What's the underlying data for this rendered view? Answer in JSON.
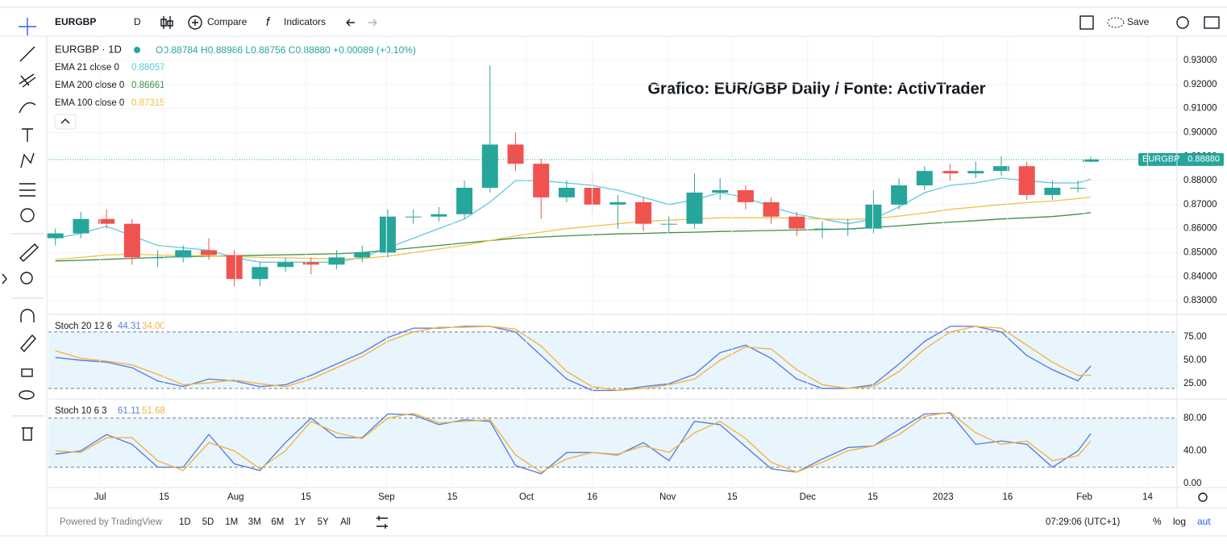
{
  "toolbar": {
    "symbol": "EURGBP",
    "interval": "D",
    "compare": "Compare",
    "indicators": "Indicators",
    "save": "Save"
  },
  "legend": {
    "symbol": "EURGBP · 1D",
    "ohlc": "O0.88784 H0.88986 L0.88756 C0.88880 +0.00089 (+0.10%)"
  },
  "annotation": "Grafico: EUR/GBP Daily / Fonte: ActivTrader",
  "bottom": {
    "powered": "Powered by TradingView",
    "ranges": [
      "1D",
      "5D",
      "1M",
      "3M",
      "6M",
      "1Y",
      "5Y",
      "All"
    ],
    "time": "07:29:06 (UTC+1)",
    "pct": "%",
    "log": "log",
    "auto": "aut"
  },
  "chart_data": [
    {
      "type": "candlestick",
      "up_color": "#26a69a",
      "down_color": "#ef5350",
      "x": [
        -7,
        -3,
        1,
        5,
        9,
        13,
        17,
        21,
        25,
        29,
        33,
        37,
        41,
        45,
        49,
        53,
        57,
        61,
        65,
        69,
        73,
        77,
        81,
        85,
        89,
        93,
        97,
        101,
        105,
        109,
        113,
        117,
        121,
        125,
        129,
        133,
        137,
        141,
        145,
        149,
        153,
        155
      ],
      "open": [
        0.856,
        0.858,
        0.864,
        0.862,
        0.848,
        0.848,
        0.851,
        0.849,
        0.839,
        0.844,
        0.846,
        0.845,
        0.848,
        0.85,
        0.865,
        0.865,
        0.866,
        0.877,
        0.895,
        0.887,
        0.873,
        0.877,
        0.87,
        0.871,
        0.862,
        0.862,
        0.875,
        0.876,
        0.871,
        0.865,
        0.86,
        0.86,
        0.86,
        0.87,
        0.878,
        0.884,
        0.883,
        0.884,
        0.886,
        0.874,
        0.877,
        0.88784
      ],
      "high": [
        0.86,
        0.867,
        0.868,
        0.864,
        0.851,
        0.853,
        0.856,
        0.851,
        0.846,
        0.848,
        0.848,
        0.851,
        0.853,
        0.868,
        0.868,
        0.869,
        0.88,
        0.928,
        0.9,
        0.889,
        0.88,
        0.883,
        0.874,
        0.873,
        0.865,
        0.883,
        0.881,
        0.878,
        0.873,
        0.867,
        0.863,
        0.864,
        0.876,
        0.881,
        0.886,
        0.887,
        0.888,
        0.89,
        0.888,
        0.88,
        0.88,
        0.88986
      ],
      "low": [
        0.853,
        0.856,
        0.86,
        0.845,
        0.844,
        0.846,
        0.847,
        0.836,
        0.836,
        0.842,
        0.841,
        0.843,
        0.846,
        0.848,
        0.862,
        0.863,
        0.864,
        0.875,
        0.884,
        0.864,
        0.871,
        0.866,
        0.86,
        0.859,
        0.858,
        0.86,
        0.872,
        0.868,
        0.862,
        0.857,
        0.856,
        0.857,
        0.858,
        0.868,
        0.876,
        0.88,
        0.881,
        0.882,
        0.872,
        0.872,
        0.875,
        0.88756
      ],
      "close": [
        0.858,
        0.864,
        0.862,
        0.848,
        0.848,
        0.851,
        0.849,
        0.839,
        0.844,
        0.846,
        0.845,
        0.848,
        0.85,
        0.865,
        0.865,
        0.866,
        0.877,
        0.895,
        0.887,
        0.873,
        0.877,
        0.87,
        0.871,
        0.862,
        0.862,
        0.875,
        0.876,
        0.871,
        0.865,
        0.86,
        0.86,
        0.86,
        0.87,
        0.878,
        0.884,
        0.883,
        0.884,
        0.886,
        0.874,
        0.877,
        0.877,
        0.8888
      ],
      "series": [
        {
          "name": "EMA 21 close 0",
          "legend_value": "0.88057",
          "color": "#5dc8e0",
          "values": [
            0.856,
            0.858,
            0.861,
            0.857,
            0.853,
            0.852,
            0.851,
            0.848,
            0.846,
            0.846,
            0.846,
            0.846,
            0.848,
            0.852,
            0.856,
            0.86,
            0.864,
            0.871,
            0.88,
            0.88,
            0.879,
            0.878,
            0.876,
            0.873,
            0.87,
            0.872,
            0.875,
            0.873,
            0.869,
            0.866,
            0.864,
            0.862,
            0.864,
            0.869,
            0.875,
            0.878,
            0.879,
            0.881,
            0.88,
            0.879,
            0.879,
            0.88057
          ]
        },
        {
          "name": "EMA 200 close 0",
          "legend_value": "0.86661",
          "color": "#3f8f47",
          "values": [
            0.8465,
            0.8468,
            0.8472,
            0.8476,
            0.848,
            0.8483,
            0.8485,
            0.8487,
            0.8489,
            0.8491,
            0.8493,
            0.8495,
            0.85,
            0.851,
            0.852,
            0.853,
            0.854,
            0.855,
            0.856,
            0.8565,
            0.857,
            0.8574,
            0.8578,
            0.858,
            0.8583,
            0.8585,
            0.8588,
            0.859,
            0.8592,
            0.8594,
            0.8596,
            0.8598,
            0.8605,
            0.8612,
            0.862,
            0.8627,
            0.8633,
            0.864,
            0.8645,
            0.865,
            0.866,
            0.86661
          ]
        },
        {
          "name": "EMA 100 close 0",
          "legend_value": "0.87315",
          "color": "#f2c145",
          "values": [
            0.847,
            0.848,
            0.849,
            0.8493,
            0.849,
            0.8488,
            0.8487,
            0.8483,
            0.848,
            0.8478,
            0.8476,
            0.8474,
            0.8475,
            0.8485,
            0.85,
            0.8515,
            0.853,
            0.855,
            0.857,
            0.8585,
            0.86,
            0.861,
            0.862,
            0.863,
            0.8635,
            0.864,
            0.8645,
            0.8645,
            0.8645,
            0.8643,
            0.864,
            0.8638,
            0.8642,
            0.8652,
            0.8665,
            0.868,
            0.869,
            0.87,
            0.8708,
            0.8715,
            0.8725,
            0.87315
          ]
        }
      ],
      "price_line": {
        "name": "EURGBP",
        "value": 0.8888,
        "label": "0.88880"
      },
      "xlim": [
        -8.1,
        168.5
      ],
      "ylim": [
        0.8243,
        0.9401
      ],
      "yticks": [
        {
          "value": 0.83,
          "label": "0.83000"
        },
        {
          "value": 0.84,
          "label": "0.84000"
        },
        {
          "value": 0.85,
          "label": "0.85000"
        },
        {
          "value": 0.86,
          "label": "0.86000"
        },
        {
          "value": 0.87,
          "label": "0.87000"
        },
        {
          "value": 0.88,
          "label": "0.88000"
        },
        {
          "value": 0.89,
          "label": "0.89000"
        },
        {
          "value": 0.9,
          "label": "0.90000"
        },
        {
          "value": 0.91,
          "label": "0.91000"
        },
        {
          "value": 0.92,
          "label": "0.92000"
        },
        {
          "value": 0.93,
          "label": "0.93000"
        }
      ]
    },
    {
      "type": "line",
      "title": "Stoch 20 12 6",
      "band": [
        20,
        80
      ],
      "x": [
        -7,
        -3,
        1,
        5,
        9,
        13,
        17,
        21,
        25,
        29,
        33,
        37,
        41,
        45,
        49,
        53,
        57,
        61,
        65,
        69,
        73,
        77,
        81,
        85,
        89,
        93,
        97,
        101,
        105,
        109,
        113,
        117,
        121,
        125,
        129,
        133,
        137,
        141,
        145,
        149,
        153,
        155
      ],
      "series": [
        {
          "legend_value": "44.31",
          "color": "#5b7fe0",
          "values": [
            53,
            50,
            48,
            42,
            28,
            22,
            30,
            28,
            22,
            24,
            34,
            46,
            58,
            74,
            84,
            84,
            86,
            86,
            80,
            55,
            30,
            18,
            18,
            22,
            25,
            35,
            58,
            66,
            52,
            30,
            20,
            20,
            24,
            46,
            70,
            86,
            86,
            80,
            55,
            40,
            28,
            44
          ]
        },
        {
          "legend_value": "34.00",
          "color": "#f2b53f",
          "values": [
            60,
            52,
            49,
            45,
            35,
            24,
            26,
            29,
            25,
            22,
            30,
            42,
            54,
            70,
            80,
            85,
            85,
            86,
            83,
            65,
            38,
            22,
            18,
            20,
            24,
            30,
            50,
            64,
            62,
            40,
            24,
            20,
            22,
            38,
            62,
            80,
            86,
            84,
            66,
            48,
            34,
            34
          ]
        }
      ],
      "xlim": [
        -8.1,
        168.5
      ],
      "ylim": [
        8.9,
        97.9
      ],
      "yticks": [
        {
          "value": 25,
          "label": "25.00"
        },
        {
          "value": 50,
          "label": "50.00"
        },
        {
          "value": 75,
          "label": "75.00"
        }
      ]
    },
    {
      "type": "line",
      "title": "Stoch 10 6 3",
      "band": [
        20,
        80
      ],
      "x": [
        -7,
        -3,
        1,
        5,
        9,
        13,
        17,
        21,
        25,
        29,
        33,
        37,
        41,
        45,
        49,
        53,
        57,
        61,
        65,
        69,
        73,
        77,
        81,
        85,
        89,
        93,
        97,
        101,
        105,
        109,
        113,
        117,
        121,
        125,
        129,
        133,
        137,
        141,
        145,
        149,
        153,
        155
      ],
      "series": [
        {
          "legend_value": "61.11",
          "color": "#5b7fe0",
          "values": [
            36,
            40,
            60,
            48,
            20,
            20,
            60,
            24,
            16,
            50,
            80,
            56,
            56,
            85,
            84,
            72,
            78,
            76,
            22,
            12,
            38,
            38,
            35,
            50,
            28,
            76,
            72,
            45,
            18,
            14,
            30,
            44,
            46,
            66,
            85,
            86,
            48,
            52,
            48,
            20,
            40,
            61
          ]
        },
        {
          "legend_value": "51.68",
          "color": "#f2b53f",
          "values": [
            40,
            38,
            56,
            56,
            28,
            16,
            50,
            40,
            18,
            40,
            76,
            62,
            55,
            80,
            86,
            74,
            76,
            78,
            35,
            14,
            30,
            38,
            36,
            46,
            38,
            62,
            76,
            55,
            26,
            14,
            26,
            40,
            46,
            60,
            82,
            87,
            62,
            48,
            52,
            28,
            34,
            52
          ]
        }
      ],
      "xlim": [
        -8.1,
        168.5
      ],
      "ylim": [
        -4.9,
        102.4
      ],
      "yticks": [
        {
          "value": 0,
          "label": "0.00"
        },
        {
          "value": 40,
          "label": "40.00"
        },
        {
          "value": 80,
          "label": "80.00"
        }
      ],
      "xticks": [
        {
          "value": 0,
          "label": "Jul"
        },
        {
          "value": 10,
          "label": "15"
        },
        {
          "value": 21.2,
          "label": "Aug"
        },
        {
          "value": 32.2,
          "label": "15"
        },
        {
          "value": 44.8,
          "label": "Sep"
        },
        {
          "value": 55.1,
          "label": "15"
        },
        {
          "value": 66.7,
          "label": "Oct"
        },
        {
          "value": 77,
          "label": "16"
        },
        {
          "value": 88.8,
          "label": "Nov"
        },
        {
          "value": 98.9,
          "label": "15"
        },
        {
          "value": 110.7,
          "label": "Dec"
        },
        {
          "value": 120.9,
          "label": "15"
        },
        {
          "value": 131.9,
          "label": "2023"
        },
        {
          "value": 142,
          "label": "16"
        },
        {
          "value": 154,
          "label": "Feb"
        },
        {
          "value": 163.9,
          "label": "14"
        }
      ]
    }
  ]
}
